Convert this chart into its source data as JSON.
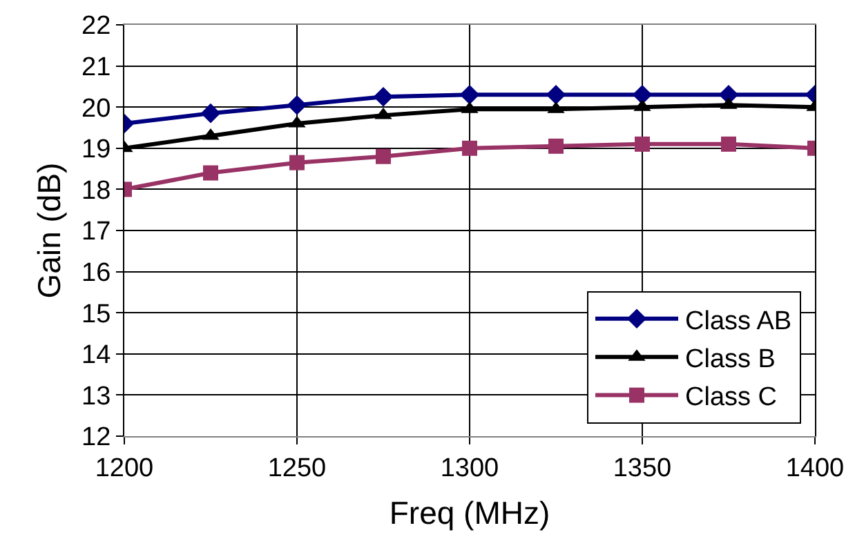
{
  "chart_data": {
    "type": "line",
    "xlabel": "Freq (MHz)",
    "ylabel": "Gain (dB)",
    "x": [
      1200,
      1225,
      1250,
      1275,
      1300,
      1325,
      1350,
      1375,
      1400
    ],
    "series": [
      {
        "name": "Class AB",
        "color": "#000080",
        "marker": "diamond",
        "values": [
          19.6,
          19.85,
          20.05,
          20.25,
          20.3,
          20.3,
          20.3,
          20.3,
          20.3
        ]
      },
      {
        "name": "Class B",
        "color": "#000000",
        "marker": "triangle",
        "values": [
          19.0,
          19.3,
          19.6,
          19.8,
          19.95,
          19.95,
          20.0,
          20.05,
          20.0
        ]
      },
      {
        "name": "Class C",
        "color": "#993366",
        "marker": "square",
        "values": [
          18.0,
          18.4,
          18.65,
          18.8,
          19.0,
          19.05,
          19.1,
          19.1,
          19.0
        ]
      }
    ],
    "xlim": [
      1200,
      1400
    ],
    "xticks": [
      1200,
      1250,
      1300,
      1350,
      1400
    ],
    "ylim": [
      12,
      22
    ],
    "yticks": [
      12,
      13,
      14,
      15,
      16,
      17,
      18,
      19,
      20,
      21,
      22
    ],
    "grid": true,
    "legend": "bottom right",
    "line_style": "solid"
  }
}
